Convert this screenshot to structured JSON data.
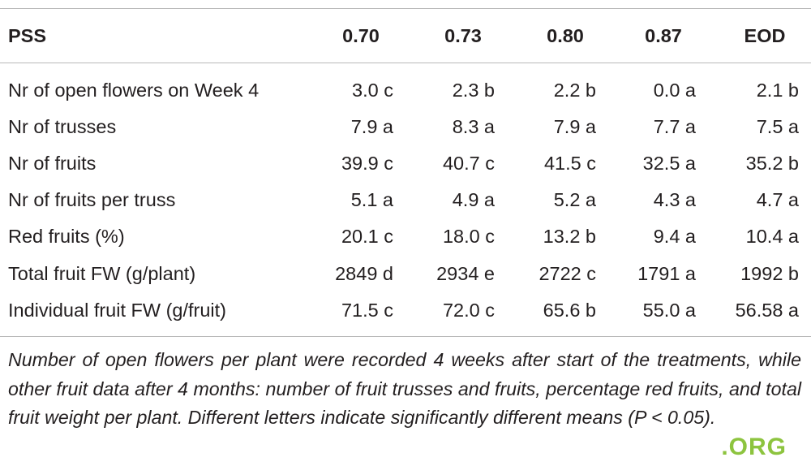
{
  "table": {
    "header": [
      "PSS",
      "0.70",
      "0.73",
      "0.80",
      "0.87",
      "EOD"
    ],
    "rows": [
      [
        "Nr of open flowers on Week 4",
        "3.0 c",
        "2.3 b",
        "2.2 b",
        "0.0 a",
        "2.1 b"
      ],
      [
        "Nr of trusses",
        "7.9 a",
        "8.3 a",
        "7.9 a",
        "7.7 a",
        "7.5 a"
      ],
      [
        "Nr of fruits",
        "39.9 c",
        "40.7 c",
        "41.5 c",
        "32.5 a",
        "35.2 b"
      ],
      [
        "Nr of fruits per truss",
        "5.1 a",
        "4.9 a",
        "5.2 a",
        "4.3 a",
        "4.7 a"
      ],
      [
        "Red fruits (%)",
        "20.1 c",
        "18.0 c",
        "13.2 b",
        "9.4 a",
        "10.4 a"
      ],
      [
        "Total fruit FW (g/plant)",
        "2849 d",
        "2934 e",
        "2722 c",
        "1791 a",
        "1992 b"
      ],
      [
        "Individual fruit FW (g/fruit)",
        "71.5 c",
        "72.0 c",
        "65.6 b",
        "55.0 a",
        "56.58 a"
      ]
    ],
    "footnote": "Number of open flowers per plant were recorded 4 weeks after start of the treatments, while other fruit data after 4 months: number of fruit trusses and fruits, percentage red fruits, and total fruit weight per plant. Different letters indicate significantly different means (P < 0.05)."
  },
  "watermark": ".ORG"
}
